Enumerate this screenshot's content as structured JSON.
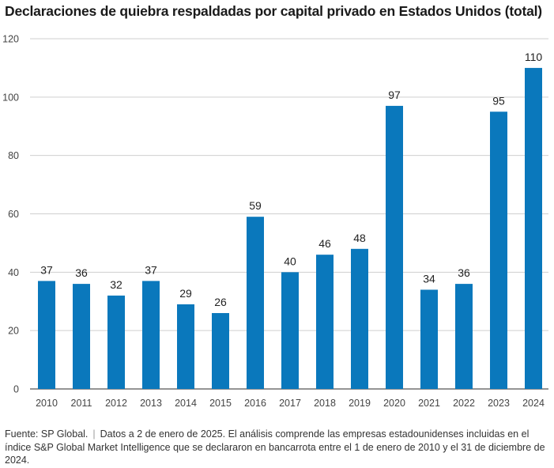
{
  "title": "Declaraciones de quiebra respaldadas por capital privado en Estados Unidos (total)",
  "chart_data": {
    "type": "bar",
    "categories": [
      "2010",
      "2011",
      "2012",
      "2013",
      "2014",
      "2015",
      "2016",
      "2017",
      "2018",
      "2019",
      "2020",
      "2021",
      "2022",
      "2023",
      "2024"
    ],
    "values": [
      37,
      36,
      32,
      37,
      29,
      26,
      59,
      40,
      46,
      48,
      97,
      34,
      36,
      95,
      110
    ],
    "ylim": [
      0,
      120
    ],
    "yticks": [
      0,
      20,
      40,
      60,
      80,
      100,
      120
    ],
    "grid": true,
    "bar_color": "#0a78bc",
    "data_labels": true
  },
  "footer": {
    "source": "Fuente: SP Global.",
    "separator": "|",
    "note": "Datos a 2 de enero de 2025. El análisis comprende las empresas estadounidenses incluidas en el índice S&P Global Market Intelligence que se declararon en bancarrota entre el 1 de enero de 2010 y el 31 de diciembre de 2024."
  }
}
